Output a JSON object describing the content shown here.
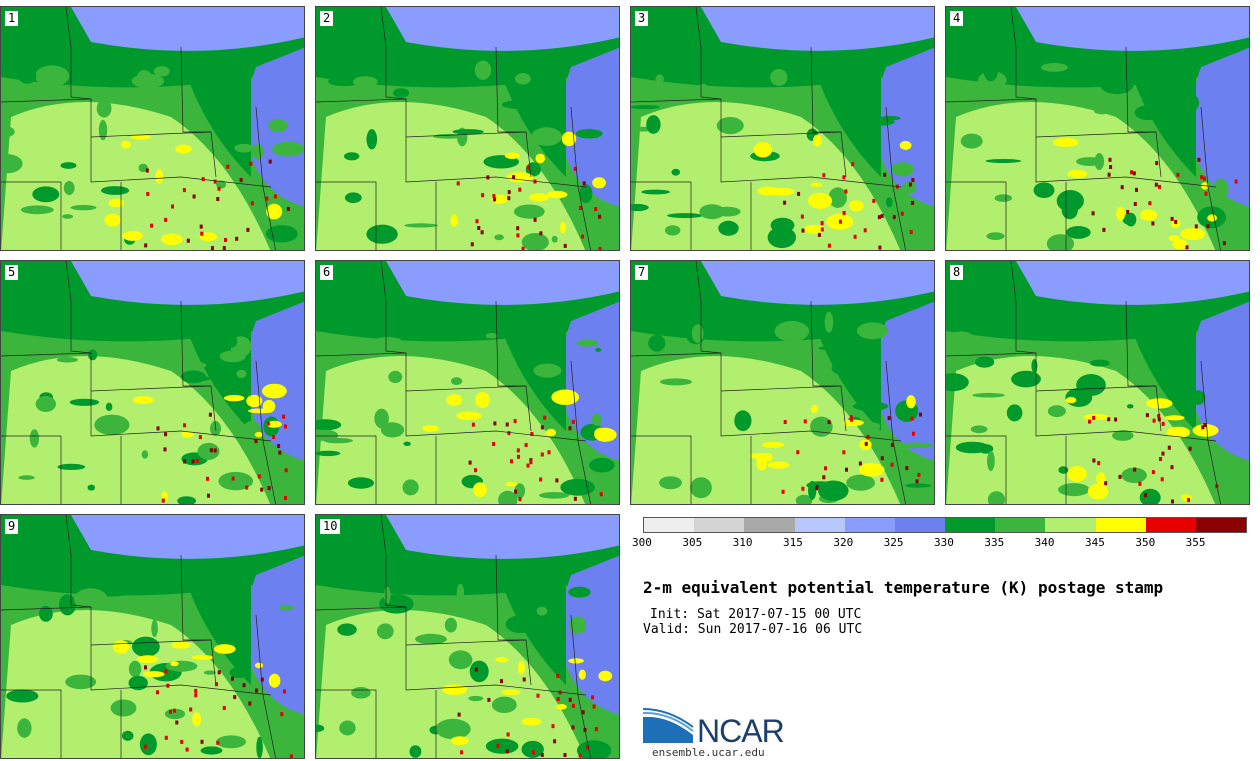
{
  "stamps": [
    {
      "label": "1"
    },
    {
      "label": "2"
    },
    {
      "label": "3"
    },
    {
      "label": "4"
    },
    {
      "label": "5"
    },
    {
      "label": "6"
    },
    {
      "label": "7"
    },
    {
      "label": "8"
    },
    {
      "label": "9"
    },
    {
      "label": "10"
    }
  ],
  "colorbar": {
    "colors": [
      "#eeeeee",
      "#d4d4d4",
      "#a9a9a9",
      "#b8c8ff",
      "#8a9dff",
      "#6c80f0",
      "#009a2c",
      "#3cb53c",
      "#b2ef6e",
      "#ffff00",
      "#e60000",
      "#8b0000"
    ],
    "ticks": [
      "300",
      "305",
      "310",
      "315",
      "320",
      "325",
      "330",
      "335",
      "340",
      "345",
      "350",
      "355"
    ]
  },
  "title": "2-m equivalent potential temperature (K) postage stamp",
  "init": "Init: Sat 2017-07-15 00 UTC",
  "valid": "Valid: Sun 2017-07-16 06 UTC",
  "logo": {
    "text": "NCAR",
    "site": "ensemble.ucar.edu"
  }
}
